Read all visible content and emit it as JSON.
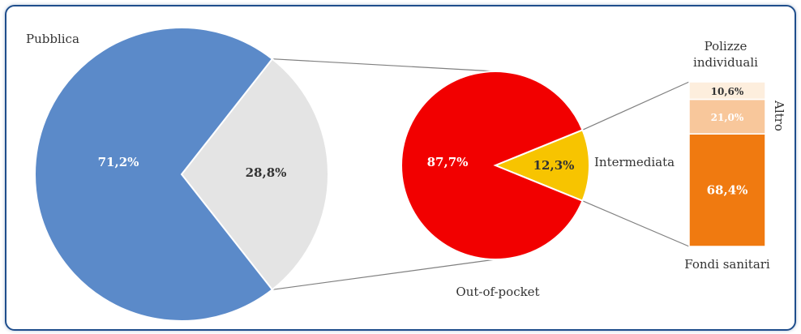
{
  "chart_data": [
    {
      "type": "pie",
      "slices": [
        {
          "label": "Pubblica",
          "value": 71.2,
          "text": "71,2%",
          "color": "#5b8ac9"
        },
        {
          "label": "",
          "value": 28.8,
          "text": "28,8%",
          "color": "#e4e4e4"
        }
      ]
    },
    {
      "type": "pie",
      "slices": [
        {
          "label": "Out-of-pocket",
          "value": 87.7,
          "text": "87,7%",
          "color": "#f20000"
        },
        {
          "label": "Intermediata",
          "value": 12.3,
          "text": "12,3%",
          "color": "#f7c400"
        }
      ]
    },
    {
      "type": "bar",
      "stacked": true,
      "segments": [
        {
          "label": "Fondi sanitari",
          "value": 68.4,
          "text": "68,4%",
          "color": "#f07a10"
        },
        {
          "label": "Altro",
          "value": 21.0,
          "text": "21,0%",
          "color": "#f8c79b"
        },
        {
          "label": "Polizze individuali",
          "value": 10.6,
          "text": "10,6%",
          "color": "#fdeedd"
        }
      ],
      "labels": {
        "top_line1": "Polizze",
        "top_line2": "individuali",
        "side": "Altro",
        "bottom": "Fondi sanitari"
      }
    }
  ]
}
